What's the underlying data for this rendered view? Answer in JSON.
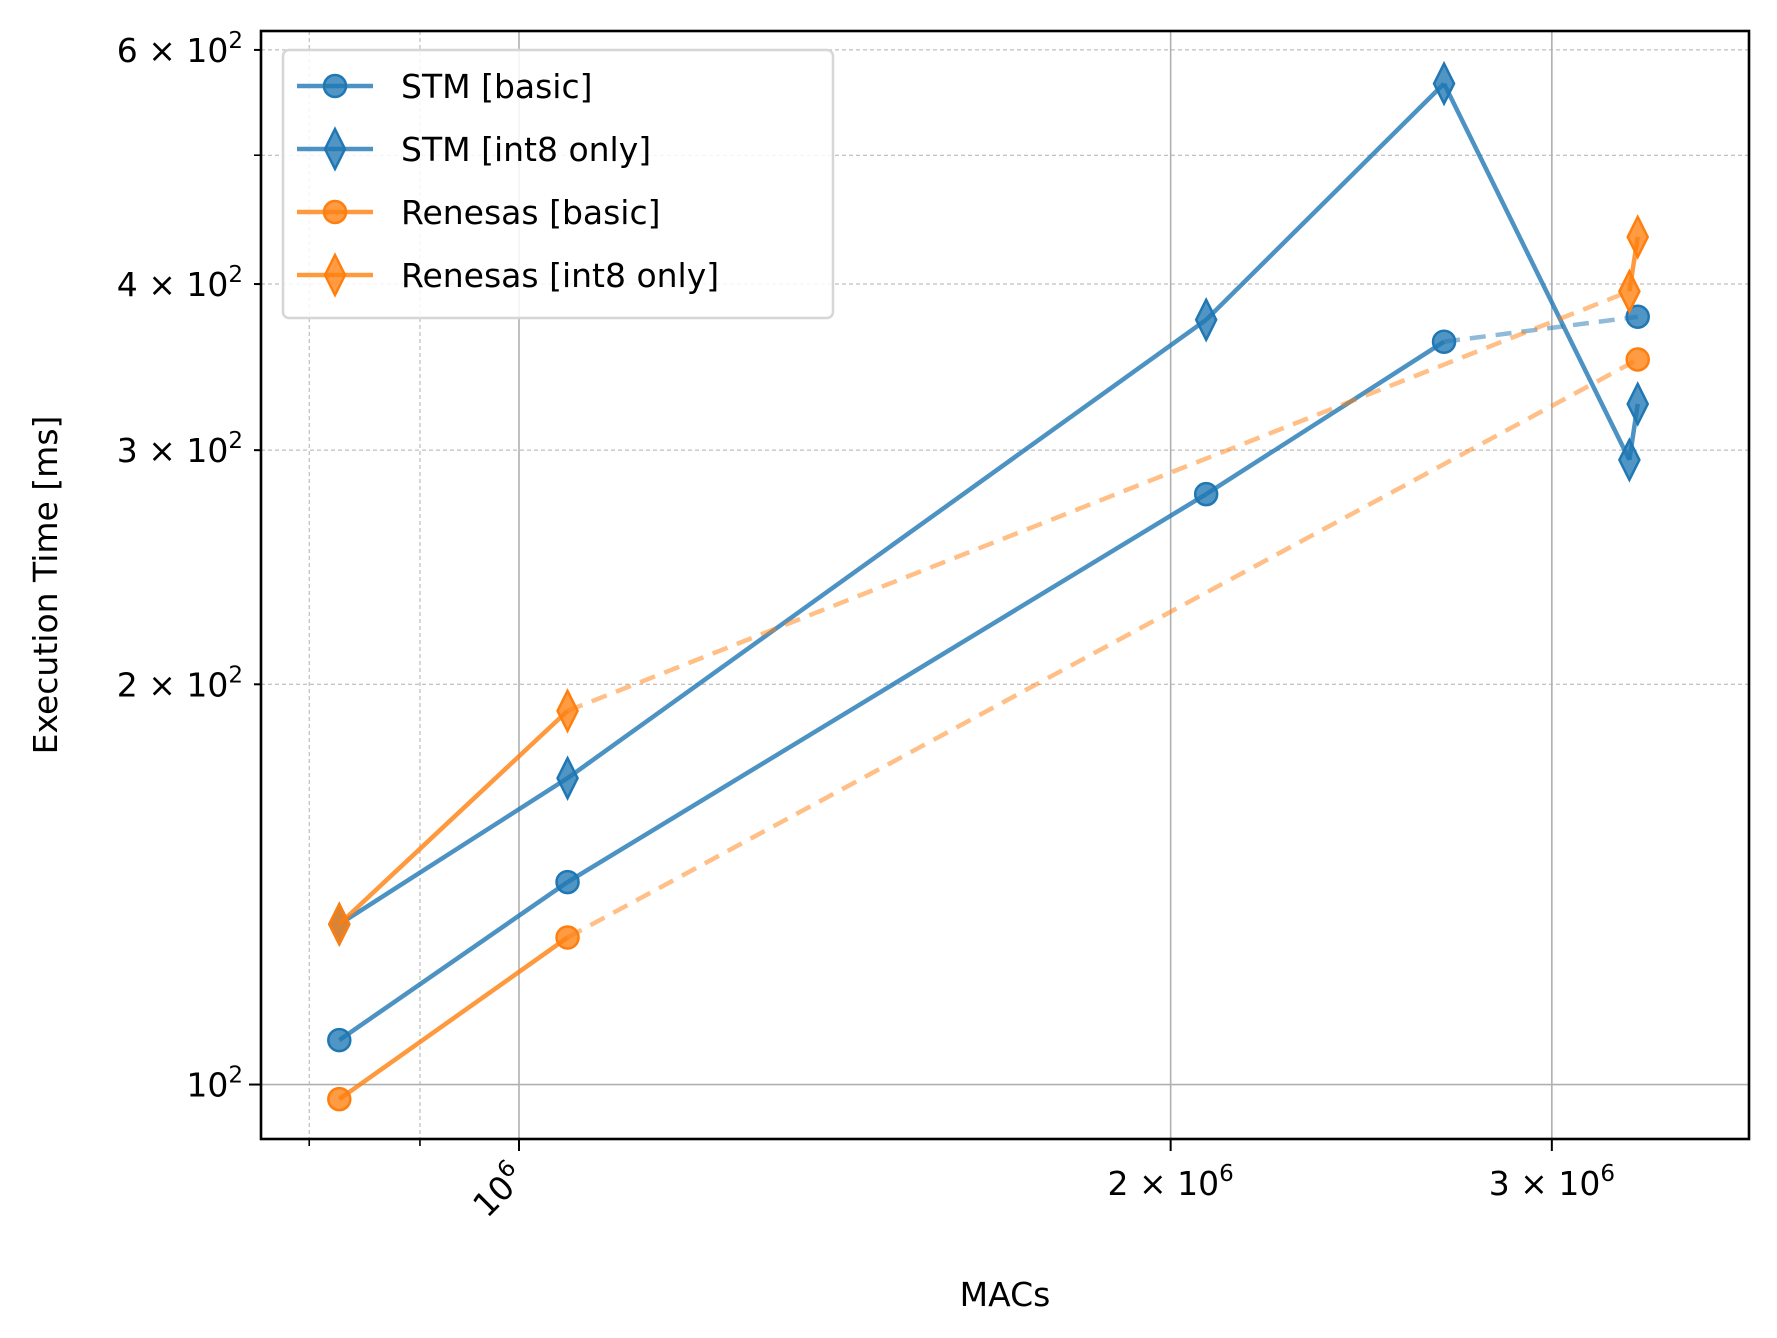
{
  "chart_data": {
    "type": "line",
    "title": "",
    "xlabel": "MACs",
    "ylabel": "Execution Time [ms]",
    "xscale": "log",
    "yscale": "log",
    "xlim": [
      760000,
      3700000
    ],
    "ylim": [
      91,
      620
    ],
    "grid": true,
    "legend_position": "top-left",
    "x_ticks": [
      {
        "value": 1000000,
        "base": "10",
        "exp": "6",
        "mant": "",
        "rotated": true
      },
      {
        "value": 2000000,
        "base": "10",
        "exp": "6",
        "mant": "2",
        "rotated": false
      },
      {
        "value": 3000000,
        "base": "10",
        "exp": "6",
        "mant": "3",
        "rotated": false
      }
    ],
    "x_minor_ticks": [
      800000,
      900000,
      4000000
    ],
    "y_ticks": [
      {
        "value": 100,
        "base": "10",
        "exp": "2",
        "mant": ""
      },
      {
        "value": 200,
        "base": "10",
        "exp": "2",
        "mant": "2"
      },
      {
        "value": 300,
        "base": "10",
        "exp": "2",
        "mant": "3"
      },
      {
        "value": 400,
        "base": "10",
        "exp": "2",
        "mant": "4"
      },
      {
        "value": 600,
        "base": "10",
        "exp": "2",
        "mant": "6"
      }
    ],
    "y_minor_ticks": [
      90,
      500
    ],
    "series": [
      {
        "name": "STM [basic]",
        "color": "#1f77b4",
        "marker": "circle",
        "points": [
          [
            826000,
            108
          ],
          [
            1053000,
            142
          ],
          [
            2077000,
            278
          ],
          [
            2675000,
            362
          ],
          [
            3287000,
            378
          ]
        ],
        "segments": [
          "solid",
          "solid",
          "solid",
          "dashed"
        ]
      },
      {
        "name": "STM [int8 only]",
        "color": "#1f77b4",
        "marker": "diamond",
        "points": [
          [
            826000,
            132
          ],
          [
            1053000,
            170
          ],
          [
            2077000,
            376
          ],
          [
            2675000,
            566
          ],
          [
            3258000,
            295
          ],
          [
            3287000,
            325
          ]
        ],
        "segments": [
          "solid",
          "solid",
          "solid",
          "solid",
          "solid"
        ]
      },
      {
        "name": "Renesas [basic]",
        "color": "#ff7f0e",
        "marker": "circle",
        "points": [
          [
            826000,
            97.5
          ],
          [
            1053000,
            129
          ],
          [
            3287000,
            351
          ]
        ],
        "segments": [
          "solid",
          "dashed"
        ]
      },
      {
        "name": "Renesas [int8 only]",
        "color": "#ff7f0e",
        "marker": "diamond",
        "points": [
          [
            826000,
            132
          ],
          [
            1053000,
            191
          ],
          [
            3258000,
            395
          ],
          [
            3287000,
            434
          ]
        ],
        "segments": [
          "solid",
          "dashed",
          "solid"
        ]
      }
    ]
  }
}
